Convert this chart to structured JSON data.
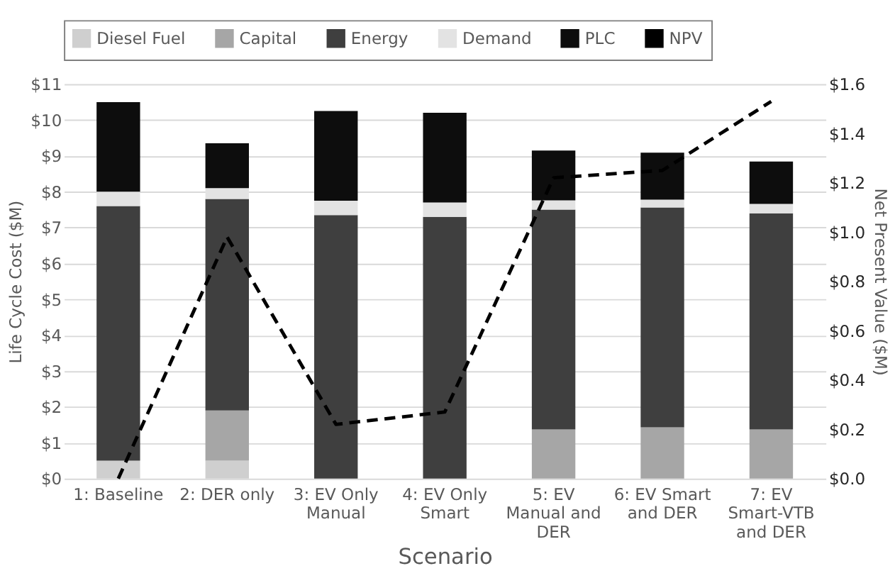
{
  "chart_data": {
    "type": "bar",
    "stacked": true,
    "xlabel": "Scenario",
    "ylabel": "Life Cycle Cost ($M)",
    "y2label": "Net Present Value ($M)",
    "categories": [
      "1: Baseline",
      "2: DER only",
      "3: EV Only Manual",
      "4: EV Only Smart",
      "5: EV Manual and DER",
      "6: EV Smart and DER",
      "7: EV Smart-VTB and DER"
    ],
    "series": [
      {
        "name": "Diesel Fuel",
        "color": "#cfcfcf",
        "values": [
          0.5,
          0.5,
          0,
          0,
          0,
          0,
          0
        ]
      },
      {
        "name": "Capital",
        "color": "#a6a6a6",
        "values": [
          0,
          1.4,
          0,
          0,
          1.37,
          1.43,
          1.37
        ]
      },
      {
        "name": "Energy",
        "color": "#3f3f3f",
        "values": [
          7.1,
          5.9,
          7.35,
          7.3,
          6.13,
          6.13,
          6.03
        ]
      },
      {
        "name": "Demand",
        "color": "#e3e3e3",
        "values": [
          0.4,
          0.3,
          0.4,
          0.4,
          0.26,
          0.22,
          0.26
        ]
      },
      {
        "name": "PLC",
        "color": "#0d0d0d",
        "values": [
          2.5,
          1.25,
          2.5,
          2.5,
          1.39,
          1.31,
          1.18
        ]
      },
      {
        "name": "NPV",
        "type": "line",
        "axis": "y2",
        "line_style": "dashed",
        "color": "#000000",
        "values": [
          0.0,
          0.98,
          0.22,
          0.27,
          1.22,
          1.25,
          1.53
        ]
      }
    ],
    "ylim": [
      0,
      11
    ],
    "yticks": [
      {
        "value": 0,
        "label": "$0"
      },
      {
        "value": 1,
        "label": "$1"
      },
      {
        "value": 2,
        "label": "$2"
      },
      {
        "value": 3,
        "label": "$3"
      },
      {
        "value": 4,
        "label": "$4"
      },
      {
        "value": 5,
        "label": "$5"
      },
      {
        "value": 6,
        "label": "$6"
      },
      {
        "value": 7,
        "label": "$7"
      },
      {
        "value": 8,
        "label": "$8"
      },
      {
        "value": 9,
        "label": "$9"
      },
      {
        "value": 10,
        "label": "$10"
      },
      {
        "value": 11,
        "label": "$11"
      }
    ],
    "y2lim": [
      0,
      1.6
    ],
    "y2ticks": [
      {
        "value": 0,
        "label": "$0.0"
      },
      {
        "value": 0.2,
        "label": "$0.2"
      },
      {
        "value": 0.4,
        "label": "$0.4"
      },
      {
        "value": 0.6,
        "label": "$0.6"
      },
      {
        "value": 0.8,
        "label": "$0.8"
      },
      {
        "value": 1.0,
        "label": "$1.0"
      },
      {
        "value": 1.2,
        "label": "$1.2"
      },
      {
        "value": 1.4,
        "label": "$1.4"
      },
      {
        "value": 1.6,
        "label": "$1.6"
      }
    ],
    "grid": "y",
    "legend": "top",
    "marker": "none"
  }
}
